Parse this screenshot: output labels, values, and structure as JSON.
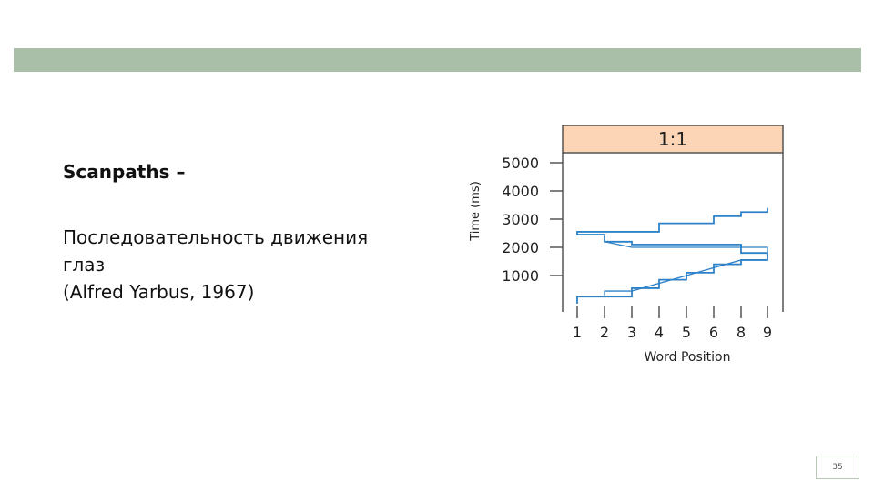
{
  "slide": {
    "title": "Scanpaths –",
    "body_lines": [
      "Последовательность движения",
      "глаз",
      "(Alfred Yarbus, 1967)"
    ],
    "page_number": "35",
    "band_color": "#a9bfa7"
  },
  "chart_data": {
    "type": "line",
    "title": "1:1",
    "xlabel": "Word Position",
    "ylabel": "Time (ms)",
    "x_ticks": [
      "1",
      "2",
      "3",
      "4",
      "5",
      "6",
      "8",
      "9"
    ],
    "y_ticks": [
      "1000",
      "2000",
      "3000",
      "4000",
      "5000"
    ],
    "ylim": [
      0,
      5500
    ],
    "header_color": "#fbd5b5",
    "line_color": "#2f82c8",
    "series": [
      {
        "points": [
          [
            1,
            0
          ],
          [
            1,
            250
          ],
          [
            3,
            250
          ],
          [
            3,
            550
          ],
          [
            4,
            550
          ],
          [
            4,
            850
          ],
          [
            5,
            850
          ],
          [
            5,
            1100
          ],
          [
            6,
            1100
          ],
          [
            6,
            1400
          ],
          [
            8,
            1400
          ],
          [
            8,
            1550
          ],
          [
            9,
            1550
          ],
          [
            9,
            1800
          ],
          [
            8,
            1800
          ],
          [
            8,
            2100
          ],
          [
            3,
            2100
          ],
          [
            3,
            2200
          ],
          [
            2,
            2200
          ],
          [
            2,
            2450
          ],
          [
            1,
            2450
          ],
          [
            1,
            2550
          ],
          [
            4,
            2550
          ],
          [
            4,
            2850
          ],
          [
            6,
            2850
          ],
          [
            6,
            3100
          ],
          [
            8,
            3100
          ],
          [
            8,
            3250
          ],
          [
            9,
            3250
          ],
          [
            9,
            3400
          ]
        ]
      },
      {
        "points": [
          [
            2,
            300
          ],
          [
            2,
            450
          ],
          [
            3,
            450
          ],
          [
            8,
            1550
          ],
          [
            9,
            1550
          ],
          [
            9,
            2000
          ],
          [
            3,
            2000
          ],
          [
            2,
            2200
          ]
        ]
      }
    ]
  }
}
